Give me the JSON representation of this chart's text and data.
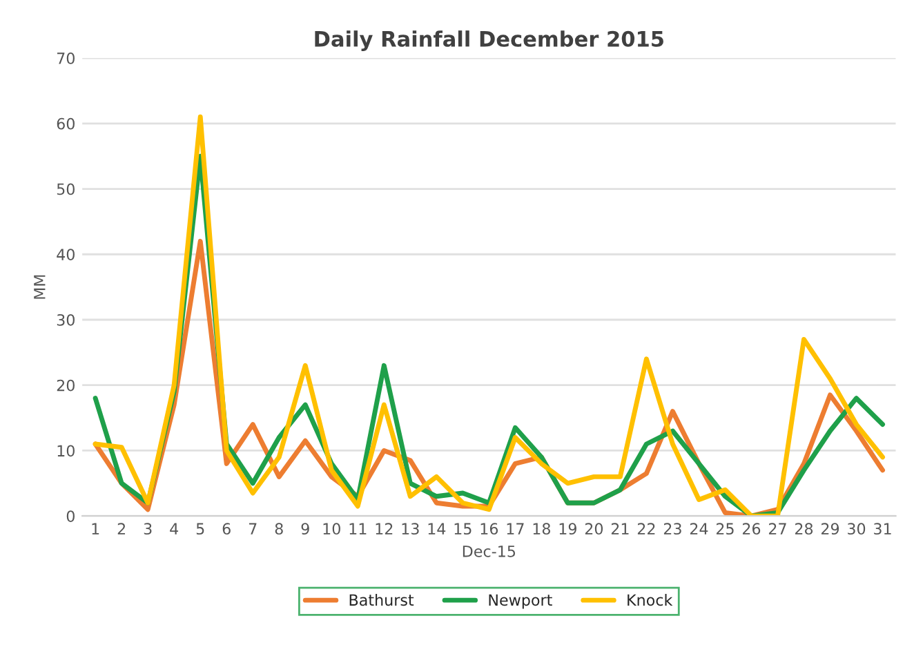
{
  "chart_data": {
    "type": "line",
    "title": "Daily Rainfall December 2015",
    "xlabel": "Dec-15",
    "ylabel": "MM",
    "categories": [
      "1",
      "2",
      "3",
      "4",
      "5",
      "6",
      "7",
      "8",
      "9",
      "10",
      "11",
      "12",
      "13",
      "14",
      "15",
      "16",
      "17",
      "18",
      "19",
      "20",
      "21",
      "22",
      "23",
      "24",
      "25",
      "26",
      "27",
      "28",
      "29",
      "30",
      "31"
    ],
    "series": [
      {
        "name": "Bathurst",
        "color": "#ed7d31",
        "values": [
          11,
          5,
          1,
          17,
          42,
          8,
          14,
          6,
          11.5,
          6,
          3,
          10,
          8.5,
          2,
          1.5,
          1.5,
          8,
          9,
          2,
          2,
          4,
          6.5,
          16,
          8,
          0.5,
          0,
          1,
          8,
          18.5,
          13,
          7
        ]
      },
      {
        "name": "Newport",
        "color": "#1fa04a",
        "values": [
          18,
          5,
          2,
          19,
          55,
          11,
          5,
          12,
          17,
          8,
          2.5,
          23,
          5,
          3,
          3.5,
          2,
          13.5,
          9,
          2,
          2,
          4,
          11,
          13,
          8,
          3,
          0,
          0.5,
          7,
          13,
          18,
          14
        ]
      },
      {
        "name": "Knock",
        "color": "#ffc000",
        "values": [
          11,
          10.5,
          2,
          20,
          61,
          10,
          3.5,
          9,
          23,
          7,
          1.5,
          17,
          3,
          6,
          2,
          1,
          12,
          8,
          5,
          6,
          6,
          24,
          11,
          2.5,
          4,
          0,
          0,
          27,
          21,
          14,
          9
        ]
      }
    ],
    "ylim": [
      0,
      70
    ],
    "yticks": [
      0,
      10,
      20,
      30,
      40,
      50,
      60,
      70
    ],
    "grid": "y",
    "legend": "bottom"
  }
}
